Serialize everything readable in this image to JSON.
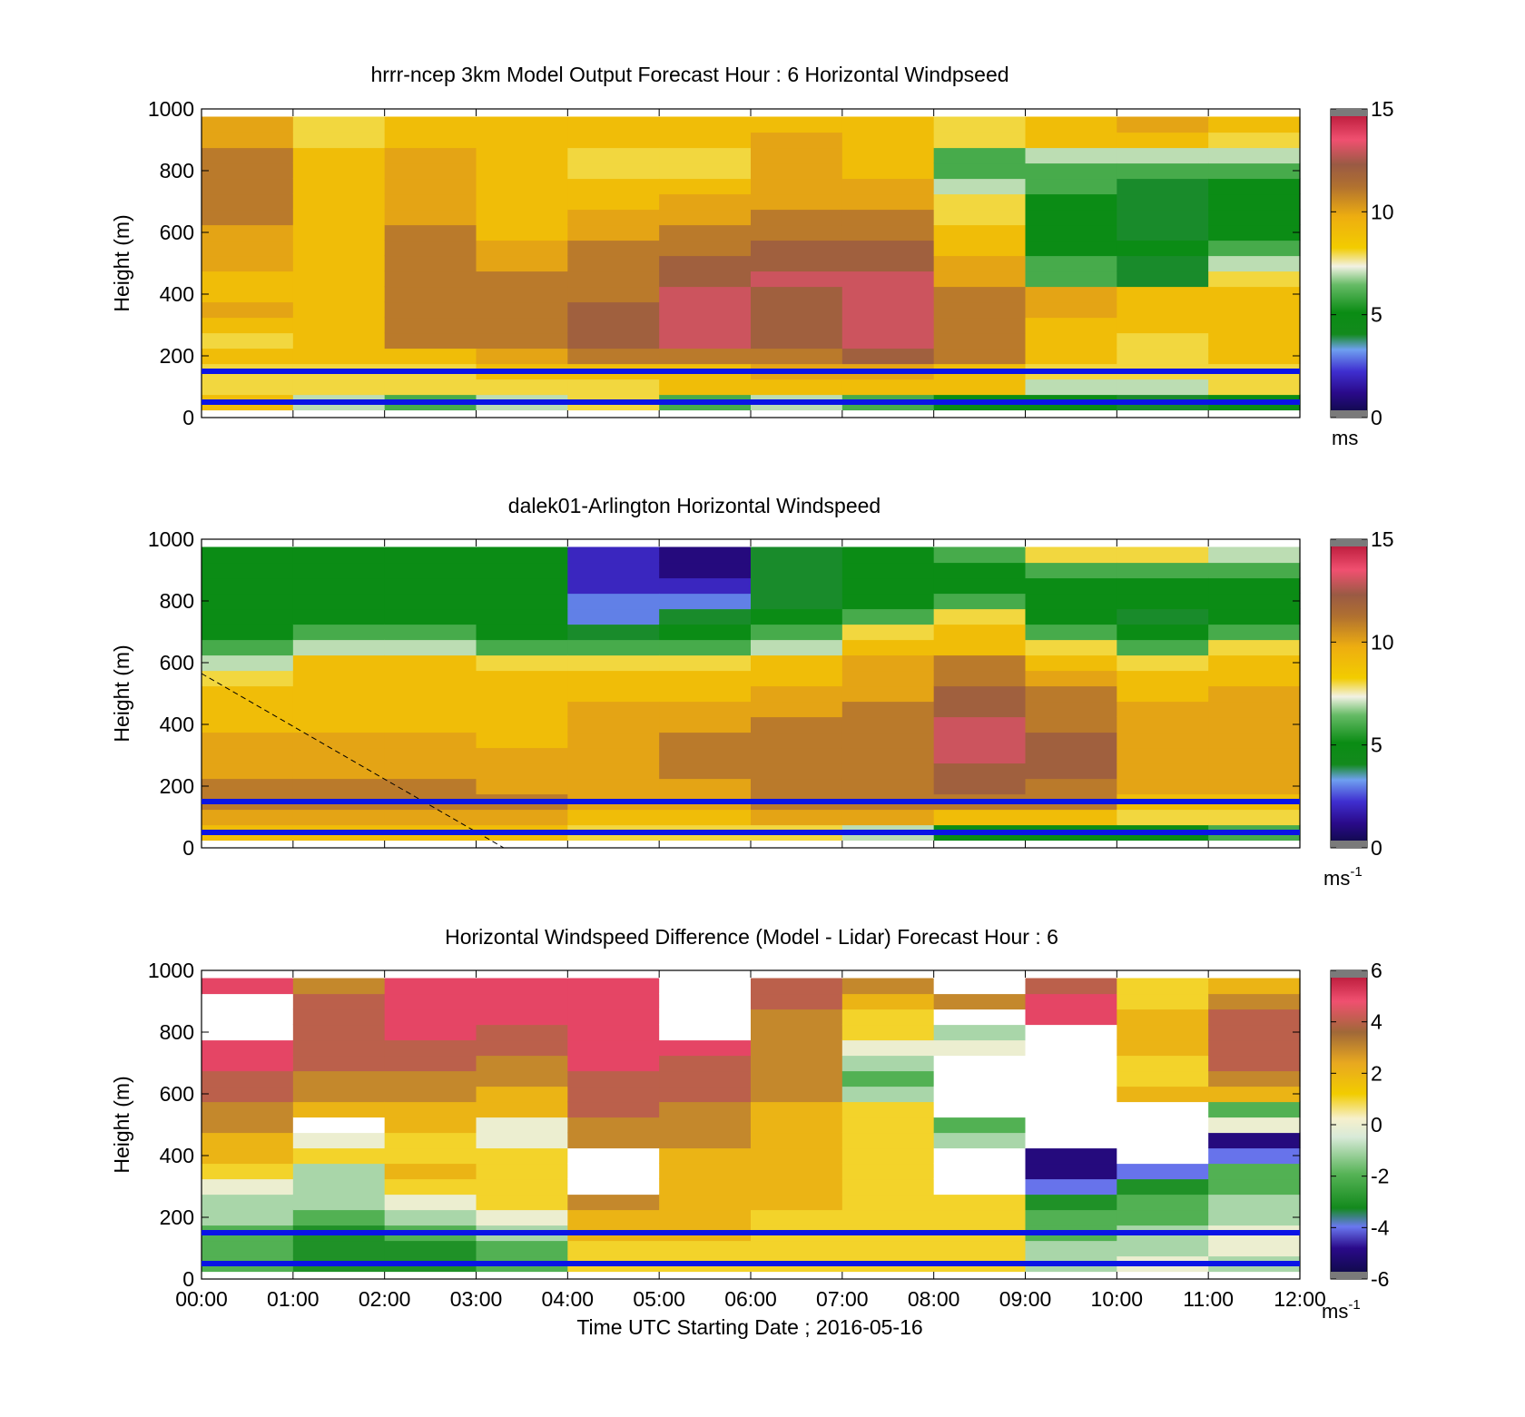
{
  "figure": {
    "xlabel": "Time UTC  Starting Date ; 2016-05-16",
    "time_ticks": [
      "00:00",
      "01:00",
      "02:00",
      "03:00",
      "04:00",
      "05:00",
      "06:00",
      "07:00",
      "08:00",
      "09:00",
      "10:00",
      "11:00",
      "12:00"
    ]
  },
  "chart_data": [
    {
      "type": "heatmap",
      "title": "hrrr-ncep 3km Model Output   Forecast Hour : 6 Horizontal Windpseed",
      "xlabel": "",
      "ylabel": "Height (m)",
      "ylim": [
        0,
        1000
      ],
      "y_ticks": [
        "0",
        "200",
        "400",
        "600",
        "800",
        "1000"
      ],
      "x_range_hours": [
        0,
        12
      ],
      "colorbar": {
        "range": [
          0,
          15
        ],
        "ticks": [
          "0",
          "5",
          "10",
          "15"
        ],
        "unit": "ms",
        "unit_sup": ""
      },
      "reference_lines_m": [
        150,
        50
      ],
      "reference_line_color": "#0a14e6",
      "x_hours": [
        0.5,
        1.5,
        2.5,
        3.5,
        4.5,
        5.5,
        6.5,
        7.5,
        8.5,
        9.5,
        10.5,
        11.5
      ],
      "y_heights_m": [
        50,
        100,
        150,
        200,
        250,
        300,
        350,
        400,
        450,
        500,
        550,
        600,
        650,
        700,
        750,
        800,
        850,
        900,
        950
      ],
      "values": [
        [
          9,
          8,
          8,
          9,
          8,
          9,
          10,
          9,
          9,
          10,
          10,
          10,
          11,
          11,
          11,
          11,
          11,
          10,
          10
        ],
        [
          7,
          8,
          8,
          9,
          9,
          9,
          9,
          9,
          9,
          9,
          9,
          9,
          9,
          9,
          9,
          9,
          9,
          8,
          8
        ],
        [
          6,
          8,
          8,
          9,
          11,
          11,
          11,
          11,
          11,
          11,
          11,
          11,
          10,
          10,
          10,
          10,
          10,
          9,
          9
        ],
        [
          7,
          8,
          9,
          10,
          11,
          11,
          11,
          11,
          11,
          10,
          10,
          9,
          9,
          9,
          9,
          9,
          9,
          9,
          9
        ],
        [
          8,
          8,
          9,
          11,
          12,
          12,
          12,
          11,
          11,
          11,
          11,
          10,
          10,
          9,
          9,
          8,
          8,
          9,
          9
        ],
        [
          6,
          9,
          9,
          11,
          13,
          13,
          13,
          13,
          12,
          12,
          11,
          11,
          10,
          10,
          9,
          8,
          8,
          9,
          9
        ],
        [
          7,
          9,
          10,
          11,
          12,
          12,
          12,
          12,
          13,
          12,
          12,
          11,
          11,
          10,
          10,
          10,
          10,
          10,
          9
        ],
        [
          6,
          9,
          10,
          12,
          13,
          13,
          13,
          13,
          13,
          12,
          12,
          11,
          11,
          10,
          10,
          9,
          9,
          9,
          9
        ],
        [
          5,
          9,
          9,
          11,
          11,
          11,
          11,
          11,
          10,
          10,
          9,
          9,
          8,
          8,
          7,
          6,
          6,
          8,
          8
        ],
        [
          5,
          7,
          8,
          9,
          9,
          9,
          10,
          10,
          6,
          6,
          5,
          5,
          5,
          5,
          6,
          6,
          7,
          9,
          9
        ],
        [
          4,
          7,
          8,
          8,
          8,
          9,
          9,
          9,
          4,
          4,
          5,
          4,
          4,
          4,
          4,
          6,
          7,
          9,
          10
        ],
        [
          5,
          8,
          8,
          9,
          9,
          9,
          9,
          9,
          8,
          7,
          6,
          5,
          5,
          5,
          5,
          6,
          7,
          8,
          9
        ]
      ]
    },
    {
      "type": "heatmap",
      "title": "dalek01-Arlington  Horizontal Windspeed",
      "xlabel": "",
      "ylabel": "Height (m)",
      "ylim": [
        0,
        1000
      ],
      "y_ticks": [
        "0",
        "200",
        "400",
        "600",
        "800",
        "1000"
      ],
      "x_range_hours": [
        0,
        12
      ],
      "colorbar": {
        "range": [
          0,
          15
        ],
        "ticks": [
          "0",
          "5",
          "10",
          "15"
        ],
        "unit": "ms",
        "unit_sup": "-1"
      },
      "reference_lines_m": [
        150,
        50
      ],
      "reference_line_color": "#0a14e6",
      "x_hours": [
        0.5,
        1.5,
        2.5,
        3.5,
        4.5,
        5.5,
        6.5,
        7.5,
        8.5,
        9.5,
        10.5,
        11.5
      ],
      "y_heights_m": [
        50,
        100,
        150,
        200,
        250,
        300,
        350,
        400,
        450,
        500,
        550,
        600,
        650,
        700,
        750,
        800,
        850,
        900,
        950
      ],
      "values": [
        [
          9,
          10,
          11,
          11,
          10,
          10,
          10,
          9,
          9,
          9,
          8,
          7,
          6,
          5,
          5,
          5,
          5,
          5,
          5
        ],
        [
          9,
          10,
          11,
          11,
          10,
          10,
          10,
          9,
          9,
          9,
          9,
          9,
          7,
          6,
          5,
          5,
          5,
          5,
          5
        ],
        [
          9,
          10,
          11,
          11,
          10,
          10,
          10,
          9,
          9,
          9,
          9,
          9,
          7,
          6,
          5,
          5,
          5,
          5,
          5
        ],
        [
          9,
          10,
          11,
          10,
          10,
          10,
          9,
          9,
          9,
          9,
          9,
          8,
          6,
          5,
          5,
          5,
          5,
          5,
          5
        ],
        [
          8,
          9,
          10,
          10,
          10,
          10,
          10,
          10,
          10,
          9,
          9,
          8,
          6,
          4,
          3,
          3,
          2,
          2,
          2
        ],
        [
          8,
          9,
          10,
          10,
          11,
          11,
          11,
          10,
          10,
          9,
          9,
          8,
          6,
          5,
          4,
          3,
          2,
          1,
          1
        ],
        [
          8,
          10,
          11,
          11,
          11,
          11,
          11,
          11,
          10,
          10,
          9,
          9,
          7,
          6,
          5,
          4,
          4,
          4,
          4
        ],
        [
          7,
          10,
          11,
          11,
          11,
          11,
          11,
          11,
          11,
          10,
          10,
          10,
          9,
          8,
          6,
          5,
          5,
          5,
          5
        ],
        [
          5,
          9,
          11,
          12,
          12,
          13,
          13,
          13,
          12,
          12,
          11,
          11,
          9,
          9,
          8,
          6,
          5,
          5,
          6
        ],
        [
          5,
          9,
          11,
          11,
          12,
          12,
          12,
          11,
          11,
          11,
          10,
          9,
          8,
          6,
          5,
          5,
          5,
          6,
          8
        ],
        [
          5,
          8,
          9,
          10,
          10,
          10,
          10,
          10,
          10,
          9,
          9,
          8,
          6,
          5,
          4,
          5,
          5,
          6,
          8
        ],
        [
          6,
          8,
          9,
          10,
          10,
          10,
          10,
          10,
          10,
          10,
          9,
          9,
          8,
          6,
          5,
          5,
          5,
          6,
          7
        ]
      ]
    },
    {
      "type": "heatmap",
      "title": "Horizontal Windspeed Difference (Model - Lidar) Forecast Hour : 6",
      "xlabel": "Time UTC  Starting Date ; 2016-05-16",
      "ylabel": "Height (m)",
      "ylim": [
        0,
        1000
      ],
      "y_ticks": [
        "0",
        "200",
        "400",
        "600",
        "800",
        "1000"
      ],
      "x_range_hours": [
        0,
        12
      ],
      "colorbar": {
        "range": [
          -6,
          6
        ],
        "ticks": [
          "-6",
          "-4",
          "-2",
          "0",
          "2",
          "4",
          "6"
        ],
        "unit": "ms",
        "unit_sup": "-1"
      },
      "reference_lines_m": [
        150,
        50
      ],
      "reference_line_color": "#0a14e6",
      "x_hours": [
        0.5,
        1.5,
        2.5,
        3.5,
        4.5,
        5.5,
        6.5,
        7.5,
        8.5,
        9.5,
        10.5,
        11.5
      ],
      "y_heights_m": [
        50,
        100,
        150,
        200,
        250,
        300,
        350,
        400,
        450,
        500,
        550,
        600,
        650,
        700,
        750,
        800,
        850,
        900,
        950
      ],
      "values": [
        [
          -2,
          -2,
          -2,
          -1,
          -1,
          0,
          1,
          2,
          2,
          3,
          3,
          4,
          4,
          5,
          5,
          null,
          null,
          null,
          5
        ],
        [
          -3,
          -3,
          -3,
          -2,
          -1,
          -1,
          -1,
          1,
          0,
          null,
          2,
          3,
          3,
          4,
          4,
          4,
          4,
          4,
          3
        ],
        [
          -3,
          -3,
          -2,
          -1,
          0,
          1,
          2,
          1,
          1,
          2,
          2,
          3,
          3,
          4,
          4,
          5,
          5,
          5,
          5
        ],
        [
          -2,
          -2,
          -1,
          0,
          1,
          1,
          1,
          1,
          0,
          0,
          2,
          2,
          3,
          3,
          4,
          4,
          5,
          5,
          5
        ],
        [
          1,
          1,
          2,
          2,
          3,
          null,
          null,
          null,
          3,
          3,
          4,
          4,
          4,
          5,
          5,
          5,
          5,
          5,
          5
        ],
        [
          1,
          1,
          2,
          2,
          2,
          2,
          2,
          2,
          3,
          3,
          3,
          4,
          4,
          4,
          5,
          null,
          null,
          null,
          null
        ],
        [
          1,
          1,
          1,
          1,
          2,
          2,
          2,
          2,
          2,
          2,
          2,
          3,
          3,
          3,
          3,
          3,
          3,
          4,
          4
        ],
        [
          1,
          1,
          1,
          1,
          1,
          1,
          1,
          1,
          1,
          1,
          1,
          -1,
          -2,
          -1,
          0,
          1,
          1,
          2,
          3
        ],
        [
          1,
          1,
          1,
          1,
          1,
          null,
          null,
          null,
          -1,
          -2,
          null,
          null,
          null,
          null,
          0,
          -1,
          null,
          3,
          null
        ],
        [
          -1,
          -1,
          -2,
          -2,
          -3,
          -4,
          -5,
          -5,
          null,
          null,
          null,
          null,
          null,
          null,
          null,
          null,
          5,
          5,
          4
        ],
        [
          0,
          -1,
          -1,
          -2,
          -2,
          -3,
          -4,
          null,
          null,
          null,
          null,
          2,
          1,
          1,
          2,
          2,
          2,
          1,
          1
        ],
        [
          -1,
          0,
          0,
          -1,
          -1,
          -2,
          -2,
          -4,
          -5,
          0,
          -2,
          2,
          3,
          4,
          4,
          4,
          4,
          3,
          2
        ]
      ]
    }
  ]
}
